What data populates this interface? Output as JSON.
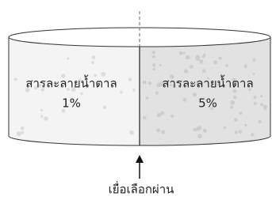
{
  "left_compartment": {
    "lines": [
      "สารละลายน้ำตาล",
      "1%"
    ]
  },
  "right_compartment": {
    "lines": [
      "สารละลายน้ำตาล",
      "5%"
    ]
  },
  "membrane": {
    "label": "เยื่อเลือกผ่าน"
  }
}
